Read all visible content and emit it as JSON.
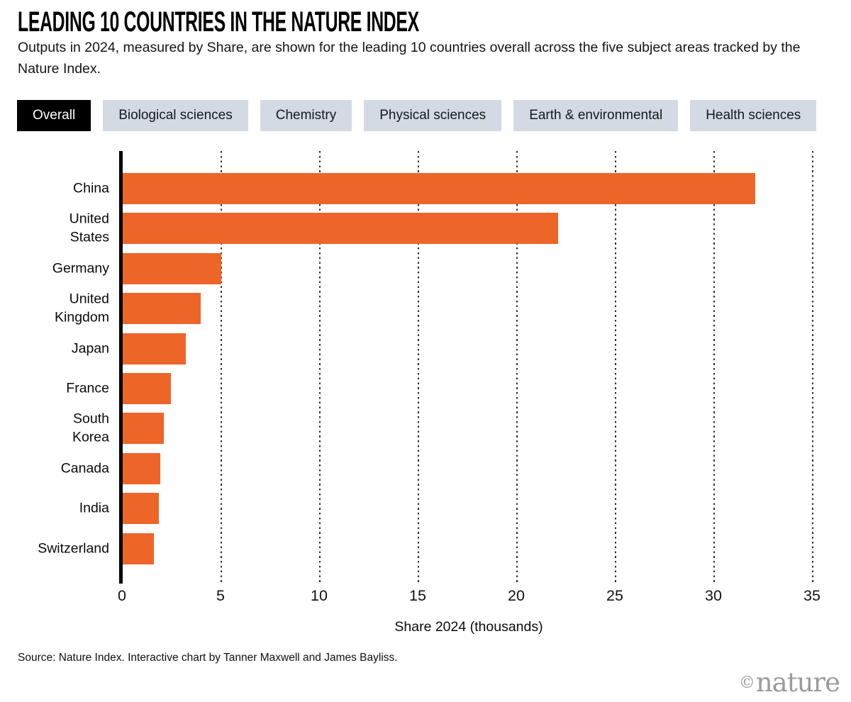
{
  "header": {
    "title": "LEADING 10 COUNTRIES IN THE NATURE INDEX",
    "subtitle": "Outputs in 2024, measured by Share, are shown for the leading 10 countries overall across the five subject areas tracked by the Nature Index."
  },
  "tabs": [
    {
      "label": "Overall",
      "active": true
    },
    {
      "label": "Biological sciences",
      "active": false
    },
    {
      "label": "Chemistry",
      "active": false
    },
    {
      "label": "Physical sciences",
      "active": false
    },
    {
      "label": "Earth & environmental",
      "active": false
    },
    {
      "label": "Health sciences",
      "active": false
    }
  ],
  "chart_data": {
    "type": "bar",
    "orientation": "horizontal",
    "categories": [
      "China",
      "United\nStates",
      "Germany",
      "United\nKingdom",
      "Japan",
      "France",
      "South\nKorea",
      "Canada",
      "India",
      "Switzerland"
    ],
    "values": [
      32.1,
      22.1,
      5.0,
      3.95,
      3.2,
      2.45,
      2.1,
      1.9,
      1.85,
      1.6
    ],
    "xlabel": "Share 2024 (thousands)",
    "xlim": [
      0,
      35
    ],
    "xticks": [
      0,
      5,
      10,
      15,
      20,
      25,
      30,
      35
    ],
    "grid": "dotted-vertical",
    "legend": "none",
    "bar_color": "#ee6529"
  },
  "colors": {
    "accent_orange": "#ee6529",
    "tab_inactive_bg": "#d4dae3",
    "tab_active_bg": "#000000",
    "tab_active_text": "#ffffff",
    "logo_gray": "#9b9b9b"
  },
  "footer": {
    "source": "Source: Nature Index. Interactive chart by Tanner Maxwell and James Bayliss.",
    "logo_mark": "©",
    "logo_text": "nature"
  }
}
